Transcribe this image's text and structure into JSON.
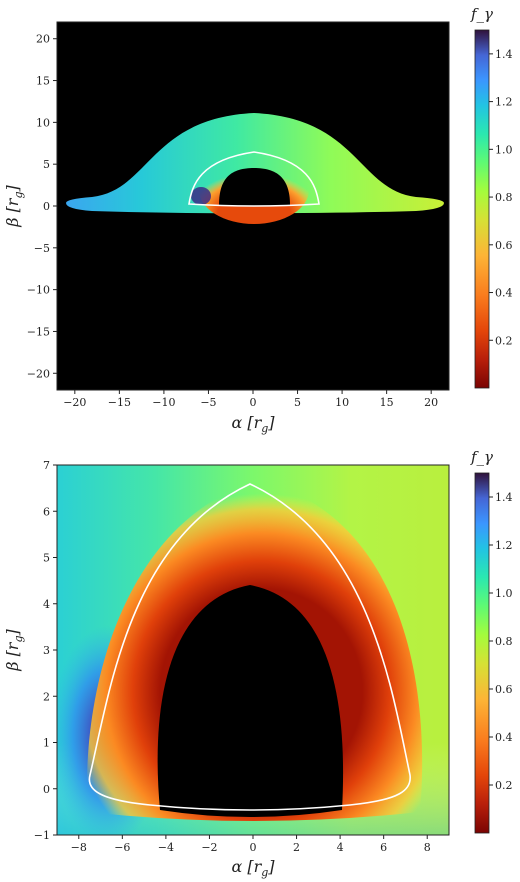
{
  "chart_data": [
    {
      "type": "heatmap",
      "title": "",
      "xlabel": "α [r_g]",
      "ylabel": "β [r_g]",
      "xlim": [
        -22,
        22
      ],
      "ylim": [
        -22,
        22
      ],
      "xticks": [
        -20,
        -15,
        -10,
        -5,
        0,
        5,
        10,
        15,
        20
      ],
      "yticks": [
        -20,
        -15,
        -10,
        -5,
        0,
        5,
        10,
        15,
        20
      ],
      "background": "#000000",
      "colorbar": {
        "label": "f_γ",
        "range": [
          0,
          1.5
        ],
        "ticks": [
          0.2,
          0.4,
          0.6,
          0.8,
          1.0,
          1.2,
          1.4
        ],
        "colormap": "turbo (reversed)"
      },
      "disk_image": {
        "outer_half_width": 21,
        "bump_height": 11,
        "shadow_center_height": 4.4,
        "contour": "white"
      }
    },
    {
      "type": "heatmap",
      "title": "",
      "xlabel": "α [r_g]",
      "ylabel": "β [r_g]",
      "xlim": [
        -9,
        9
      ],
      "ylim": [
        -1,
        7
      ],
      "xticks": [
        -8,
        -6,
        -4,
        -2,
        0,
        2,
        4,
        6,
        8
      ],
      "yticks": [
        -1,
        0,
        1,
        2,
        3,
        4,
        5,
        6,
        7
      ],
      "colorbar": {
        "label": "f_γ",
        "range": [
          0,
          1.5
        ],
        "ticks": [
          0.2,
          0.4,
          0.6,
          0.8,
          1.0,
          1.2,
          1.4
        ],
        "colormap": "turbo (reversed)"
      },
      "shadow": {
        "top": 4.4,
        "bottom": -0.4,
        "half_width": 4.1
      },
      "contour": {
        "top": 6.55,
        "bottom": -0.5,
        "half_width": 7.3,
        "color": "white"
      }
    }
  ],
  "colors": {
    "contour": "#ffffff",
    "shadow": "#000000",
    "frame": "#222222"
  }
}
